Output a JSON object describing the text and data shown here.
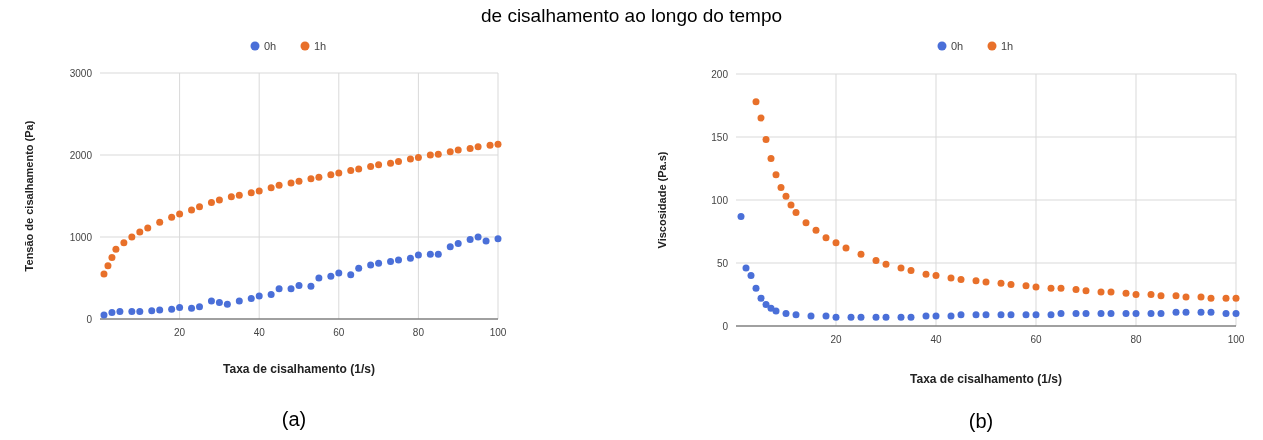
{
  "chart_data": [
    {
      "type": "scatter",
      "title": "de cisalhamento ao longo do tempo",
      "xlabel": "Taxa de cisalhamento (1/s)",
      "ylabel": "Tensão de cisalhamento (Pa)",
      "annotations": [
        "(a)"
      ],
      "xlim": [
        0,
        100
      ],
      "xticks": [
        20,
        40,
        60,
        80,
        100
      ],
      "ylim": [
        0,
        3000
      ],
      "yticks": [
        0,
        1000,
        2000,
        3000
      ],
      "grid": true,
      "legend": "top",
      "marker": "circle",
      "series": [
        {
          "name": "0h",
          "color": "#4a6fd8",
          "x": [
            1,
            3,
            5,
            8,
            10,
            13,
            15,
            18,
            20,
            23,
            25,
            28,
            30,
            32,
            35,
            38,
            40,
            43,
            45,
            48,
            50,
            53,
            55,
            58,
            60,
            63,
            65,
            68,
            70,
            73,
            75,
            78,
            80,
            83,
            85,
            88,
            90,
            93,
            95,
            97,
            100
          ],
          "values": [
            50,
            80,
            90,
            90,
            90,
            100,
            110,
            120,
            140,
            130,
            150,
            220,
            200,
            180,
            220,
            250,
            280,
            300,
            370,
            370,
            410,
            400,
            500,
            520,
            560,
            540,
            620,
            660,
            680,
            700,
            720,
            740,
            780,
            790,
            790,
            880,
            920,
            970,
            1000,
            950,
            980
          ]
        },
        {
          "name": "1h",
          "color": "#e8702a",
          "x": [
            1,
            2,
            3,
            4,
            6,
            8,
            10,
            12,
            15,
            18,
            20,
            23,
            25,
            28,
            30,
            33,
            35,
            38,
            40,
            43,
            45,
            48,
            50,
            53,
            55,
            58,
            60,
            63,
            65,
            68,
            70,
            73,
            75,
            78,
            80,
            83,
            85,
            88,
            90,
            93,
            95,
            98,
            100
          ],
          "values": [
            550,
            650,
            750,
            850,
            930,
            1000,
            1060,
            1110,
            1180,
            1240,
            1280,
            1330,
            1370,
            1420,
            1450,
            1490,
            1510,
            1540,
            1560,
            1600,
            1630,
            1660,
            1680,
            1710,
            1730,
            1760,
            1780,
            1810,
            1830,
            1860,
            1880,
            1900,
            1920,
            1950,
            1970,
            2000,
            2010,
            2040,
            2060,
            2080,
            2100,
            2120,
            2130
          ]
        }
      ]
    },
    {
      "type": "scatter",
      "xlabel": "Taxa de cisalhamento (1/s)",
      "ylabel": "Viscosidade (Pa.s)",
      "annotations": [
        "(b)"
      ],
      "xlim": [
        0,
        100
      ],
      "xticks": [
        20,
        40,
        60,
        80,
        100
      ],
      "ylim": [
        0,
        200
      ],
      "yticks": [
        0,
        50,
        100,
        150,
        200
      ],
      "grid": true,
      "legend": "top",
      "marker": "circle",
      "series": [
        {
          "name": "0h",
          "color": "#4a6fd8",
          "x": [
            1,
            2,
            3,
            4,
            5,
            6,
            7,
            8,
            10,
            12,
            15,
            18,
            20,
            23,
            25,
            28,
            30,
            33,
            35,
            38,
            40,
            43,
            45,
            48,
            50,
            53,
            55,
            58,
            60,
            63,
            65,
            68,
            70,
            73,
            75,
            78,
            80,
            83,
            85,
            88,
            90,
            93,
            95,
            98,
            100
          ],
          "values": [
            87,
            46,
            40,
            30,
            22,
            17,
            14,
            12,
            10,
            9,
            8,
            8,
            7,
            7,
            7,
            7,
            7,
            7,
            7,
            8,
            8,
            8,
            9,
            9,
            9,
            9,
            9,
            9,
            9,
            9,
            10,
            10,
            10,
            10,
            10,
            10,
            10,
            10,
            10,
            11,
            11,
            11,
            11,
            10,
            10
          ]
        },
        {
          "name": "1h",
          "color": "#e8702a",
          "x": [
            4,
            5,
            6,
            7,
            8,
            9,
            10,
            11,
            12,
            14,
            16,
            18,
            20,
            22,
            25,
            28,
            30,
            33,
            35,
            38,
            40,
            43,
            45,
            48,
            50,
            53,
            55,
            58,
            60,
            63,
            65,
            68,
            70,
            73,
            75,
            78,
            80,
            83,
            85,
            88,
            90,
            93,
            95,
            98,
            100
          ],
          "values": [
            178,
            165,
            148,
            133,
            120,
            110,
            103,
            96,
            90,
            82,
            76,
            70,
            66,
            62,
            57,
            52,
            49,
            46,
            44,
            41,
            40,
            38,
            37,
            36,
            35,
            34,
            33,
            32,
            31,
            30,
            30,
            29,
            28,
            27,
            27,
            26,
            25,
            25,
            24,
            24,
            23,
            23,
            22,
            22,
            22
          ]
        }
      ]
    }
  ]
}
